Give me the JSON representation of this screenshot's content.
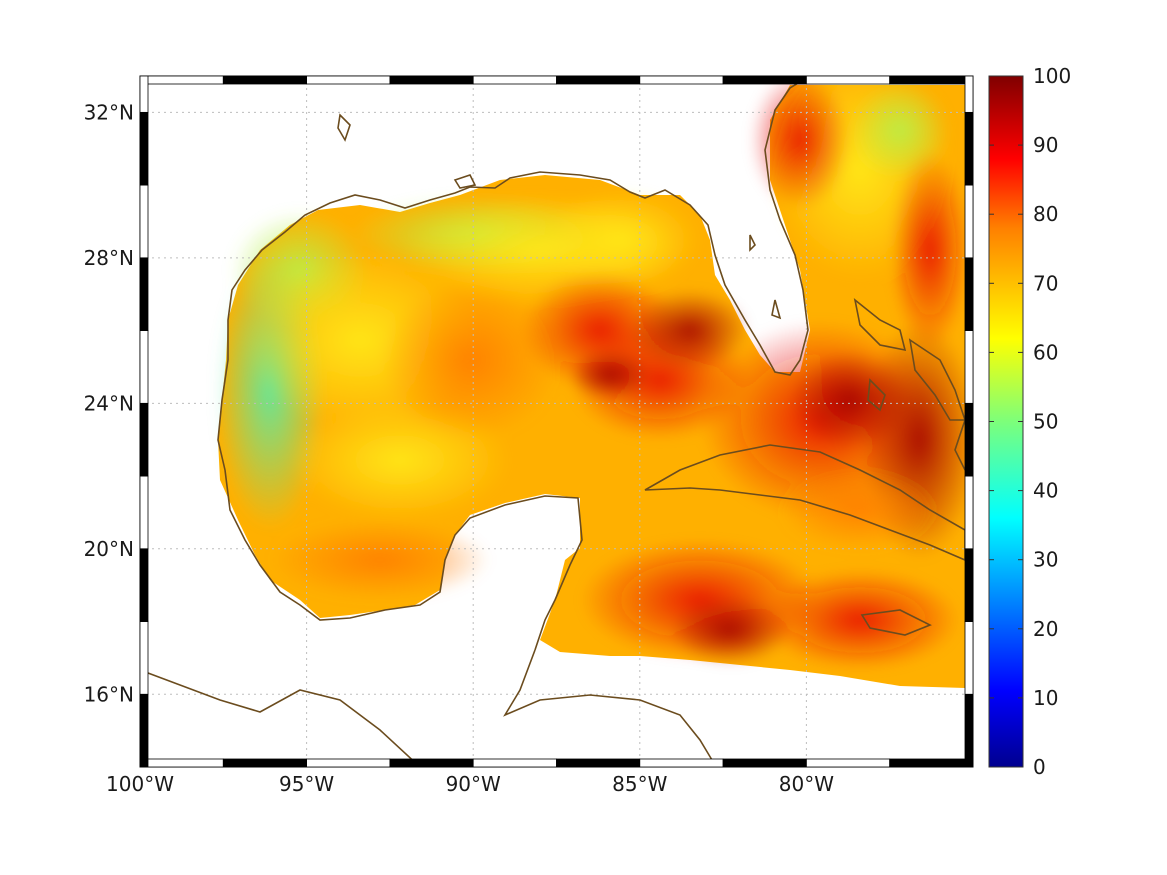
{
  "map": {
    "extent": {
      "lon_min": -100,
      "lon_max": -75,
      "lat_min": 14,
      "lat_max": 33
    },
    "x_ticks": [
      {
        "lon": -100,
        "label": "100°W"
      },
      {
        "lon": -95,
        "label": "95°W"
      },
      {
        "lon": -90,
        "label": "90°W"
      },
      {
        "lon": -85,
        "label": "85°W"
      },
      {
        "lon": -80,
        "label": "80°W"
      }
    ],
    "y_ticks": [
      {
        "lat": 32,
        "label": "32°N"
      },
      {
        "lat": 28,
        "label": "28°N"
      },
      {
        "lat": 24,
        "label": "24°N"
      },
      {
        "lat": 20,
        "label": "20°N"
      },
      {
        "lat": 16,
        "label": "16°N"
      }
    ],
    "grid": true,
    "coastline_color": "#6b4c1e",
    "colormap": "jet"
  },
  "colorbar": {
    "min": 0,
    "max": 100,
    "ticks": [
      {
        "value": 100,
        "label": "100"
      },
      {
        "value": 90,
        "label": "90"
      },
      {
        "value": 80,
        "label": "80"
      },
      {
        "value": 70,
        "label": "70"
      },
      {
        "value": 60,
        "label": "60"
      },
      {
        "value": 50,
        "label": "50"
      },
      {
        "value": 40,
        "label": "40"
      },
      {
        "value": 30,
        "label": "30"
      },
      {
        "value": 20,
        "label": "20"
      },
      {
        "value": 10,
        "label": "10"
      },
      {
        "value": 0,
        "label": "0"
      }
    ]
  }
}
